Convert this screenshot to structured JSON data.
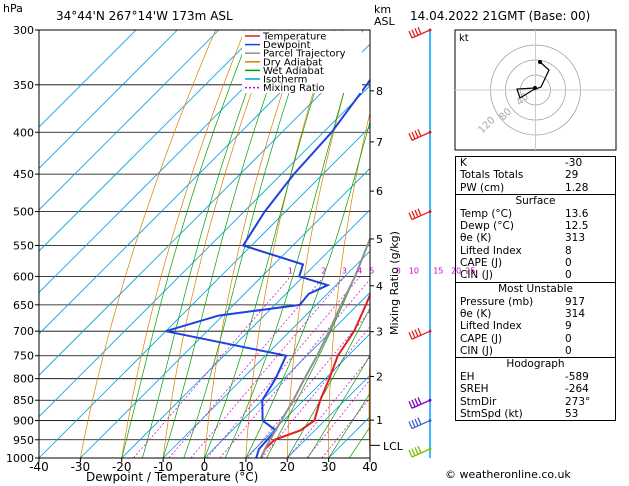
{
  "header": {
    "hpa_label": "hPa",
    "location": "34°44'N  267°14'W  173m  ASL",
    "km_label": "km",
    "asl_label": "ASL",
    "datetime": "14.04.2022  21GMT  (Base: 00)"
  },
  "xaxis_label": "Dewpoint / Temperature (°C)",
  "y2_label": "Mixing Ratio (g/kg)",
  "lcl_label": "LCL",
  "hodograph": {
    "unit": "kt",
    "ring_labels": [
      "40",
      "80",
      "120"
    ]
  },
  "legend": [
    {
      "label": "Temperature",
      "color": "#e02020"
    },
    {
      "label": "Dewpoint",
      "color": "#2040e0"
    },
    {
      "label": "Parcel Trajectory",
      "color": "#909090"
    },
    {
      "label": "Dry Adiabat",
      "color": "#d88000"
    },
    {
      "label": "Wet Adiabat",
      "color": "#00a000"
    },
    {
      "label": "Isotherm",
      "color": "#00a0e0"
    },
    {
      "label": "Mixing Ratio",
      "color": "#d000d0"
    }
  ],
  "indices": {
    "top": [
      {
        "k": "K",
        "v": "-30"
      },
      {
        "k": "Totals Totals",
        "v": "29"
      },
      {
        "k": "PW (cm)",
        "v": "1.28"
      }
    ],
    "surface_title": "Surface",
    "surface": [
      {
        "k": "Temp (°C)",
        "v": "13.6"
      },
      {
        "k": "Dewp (°C)",
        "v": "12.5"
      },
      {
        "k": "θe (K)",
        "v": "313"
      },
      {
        "k": "Lifted Index",
        "v": "8"
      },
      {
        "k": "CAPE (J)",
        "v": "0"
      },
      {
        "k": "CIN (J)",
        "v": "0"
      }
    ],
    "mu_title": "Most Unstable",
    "mu": [
      {
        "k": "Pressure (mb)",
        "v": "917"
      },
      {
        "k": "θe (K)",
        "v": "314"
      },
      {
        "k": "Lifted Index",
        "v": "9"
      },
      {
        "k": "CAPE (J)",
        "v": "0"
      },
      {
        "k": "CIN (J)",
        "v": "0"
      }
    ],
    "hodo_title": "Hodograph",
    "hodo": [
      {
        "k": "EH",
        "v": "-589"
      },
      {
        "k": "SREH",
        "v": "-264"
      },
      {
        "k": "StmDir",
        "v": "273°"
      },
      {
        "k": "StmSpd (kt)",
        "v": "53"
      }
    ]
  },
  "footer": "© weatheronline.co.uk",
  "chart_data": {
    "type": "line",
    "title": "34°44'N  267°14'W  173m  ASL",
    "xlabel": "Dewpoint / Temperature (°C)",
    "ylabel": "hPa",
    "y2label": "Mixing Ratio (g/kg)",
    "xlim": [
      -40,
      40
    ],
    "ylim": [
      1000,
      300
    ],
    "yscale": "log",
    "pressure_ticks": [
      300,
      350,
      400,
      450,
      500,
      550,
      600,
      650,
      700,
      750,
      800,
      850,
      900,
      950,
      1000
    ],
    "temp_ticks": [
      -40,
      -30,
      -20,
      -10,
      0,
      10,
      20,
      30,
      40
    ],
    "km_ticks": [
      {
        "km": "1",
        "p": 899
      },
      {
        "km": "2",
        "p": 795
      },
      {
        "km": "3",
        "p": 701
      },
      {
        "km": "4",
        "p": 616
      },
      {
        "km": "5",
        "p": 540
      },
      {
        "km": "6",
        "p": 472
      },
      {
        "km": "7",
        "p": 411
      },
      {
        "km": "8",
        "p": 356
      }
    ],
    "mixing_ratio_labels": [
      "1",
      "2",
      "3",
      "4",
      "5",
      "8",
      "10",
      "15",
      "20",
      "25"
    ],
    "mixing_ratio_values": [
      1,
      2,
      3,
      4,
      5,
      8,
      10,
      15,
      20,
      25
    ],
    "lcl_p": 965,
    "series": [
      {
        "name": "Temperature",
        "color": "#e02020",
        "points": [
          {
            "p": 1000,
            "t": 13.6
          },
          {
            "p": 975,
            "t": 12.5
          },
          {
            "p": 950,
            "t": 12.5
          },
          {
            "p": 925,
            "t": 16.5
          },
          {
            "p": 900,
            "t": 17.5
          },
          {
            "p": 850,
            "t": 14.0
          },
          {
            "p": 800,
            "t": 11.0
          },
          {
            "p": 750,
            "t": 7.5
          },
          {
            "p": 700,
            "t": 5.5
          },
          {
            "p": 650,
            "t": 2.0
          },
          {
            "p": 600,
            "t": -2.0
          },
          {
            "p": 550,
            "t": -5.5
          },
          {
            "p": 500,
            "t": -10.5
          },
          {
            "p": 450,
            "t": -16.0
          },
          {
            "p": 400,
            "t": -21.5
          },
          {
            "p": 350,
            "t": -28.5
          },
          {
            "p": 300,
            "t": -37.0
          }
        ]
      },
      {
        "name": "Dewpoint",
        "color": "#2040e0",
        "points": [
          {
            "p": 1000,
            "t": 12.5
          },
          {
            "p": 975,
            "t": 11.0
          },
          {
            "p": 925,
            "t": 10.5
          },
          {
            "p": 900,
            "t": 5.0
          },
          {
            "p": 850,
            "t": 0.0
          },
          {
            "p": 800,
            "t": -2.0
          },
          {
            "p": 750,
            "t": -5.0
          },
          {
            "p": 700,
            "t": -40.0
          },
          {
            "p": 670,
            "t": -31.0
          },
          {
            "p": 650,
            "t": -14.0
          },
          {
            "p": 630,
            "t": -14.5
          },
          {
            "p": 615,
            "t": -12.0
          },
          {
            "p": 600,
            "t": -21.0
          },
          {
            "p": 580,
            "t": -23.0
          },
          {
            "p": 550,
            "t": -42.0
          },
          {
            "p": 500,
            "t": -45.0
          },
          {
            "p": 450,
            "t": -47.0
          },
          {
            "p": 400,
            "t": -48.0
          },
          {
            "p": 350,
            "t": -51.0
          },
          {
            "p": 300,
            "t": -55.0
          }
        ]
      },
      {
        "name": "Parcel Trajectory",
        "color": "#909090",
        "points": [
          {
            "p": 1000,
            "t": 13.6
          },
          {
            "p": 965,
            "t": 12.0
          },
          {
            "p": 900,
            "t": 9.5
          },
          {
            "p": 850,
            "t": 7.5
          },
          {
            "p": 800,
            "t": 5.0
          },
          {
            "p": 750,
            "t": 2.5
          },
          {
            "p": 700,
            "t": -0.5
          },
          {
            "p": 650,
            "t": -4.0
          },
          {
            "p": 600,
            "t": -7.5
          },
          {
            "p": 550,
            "t": -12.0
          },
          {
            "p": 500,
            "t": -17.0
          },
          {
            "p": 450,
            "t": -23.0
          },
          {
            "p": 400,
            "t": -30.0
          },
          {
            "p": 350,
            "t": -38.0
          },
          {
            "p": 300,
            "t": -47.5
          }
        ]
      }
    ]
  }
}
